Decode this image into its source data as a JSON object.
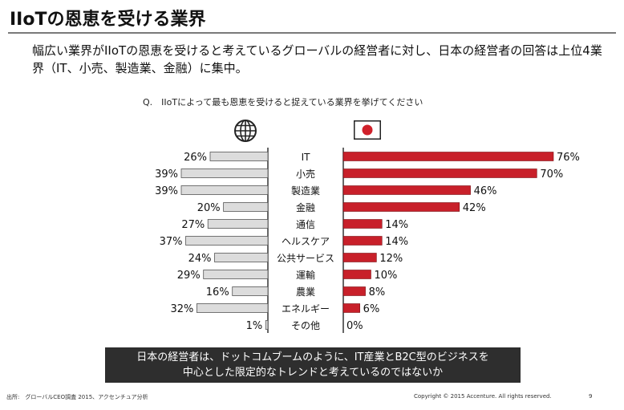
{
  "title": "IIoTの恩恵を受ける業界",
  "subtitle": "幅広い業界がIIoTの恩恵を受けると考えているグローバルの経営者に対し、日本の経営者の回答は上位4業界（IT、小売、製造業、金融）に集中。",
  "question": "Q.　IIoTによって最も恩恵を受けると捉えている業界を挙げてください",
  "icons": {
    "left": "globe-icon",
    "right": "japan-flag-icon"
  },
  "colors": {
    "global_bar": "#dcdcdc",
    "japan_bar": "#c8202a",
    "bar_outline": "#555555",
    "callout_bg": "#2e2e2e"
  },
  "chart_data": {
    "type": "bar",
    "categories": [
      "IT",
      "小売",
      "製造業",
      "金融",
      "通信",
      "ヘルスケア",
      "公共サービス",
      "運輸",
      "農業",
      "エネルギー",
      "その他"
    ],
    "series": [
      {
        "values": [
          26,
          39,
          39,
          20,
          27,
          37,
          24,
          29,
          16,
          32,
          1
        ]
      },
      {
        "values": [
          76,
          70,
          46,
          42,
          14,
          14,
          12,
          10,
          8,
          6,
          0
        ]
      }
    ],
    "value_suffix": "%",
    "xlim": [
      0,
      80
    ]
  },
  "callout": {
    "line1": "日本の経営者は、ドットコムブームのように、IT産業とB2C型のビジネスを",
    "line2": "中心とした限定的なトレンドと考えているのではないか"
  },
  "footer": {
    "source": "出所:　グローバルCEO調査 2015、アクセンチュア分析",
    "copyright": "Copyright © 2015 Accenture. All rights reserved.",
    "page": "9"
  }
}
